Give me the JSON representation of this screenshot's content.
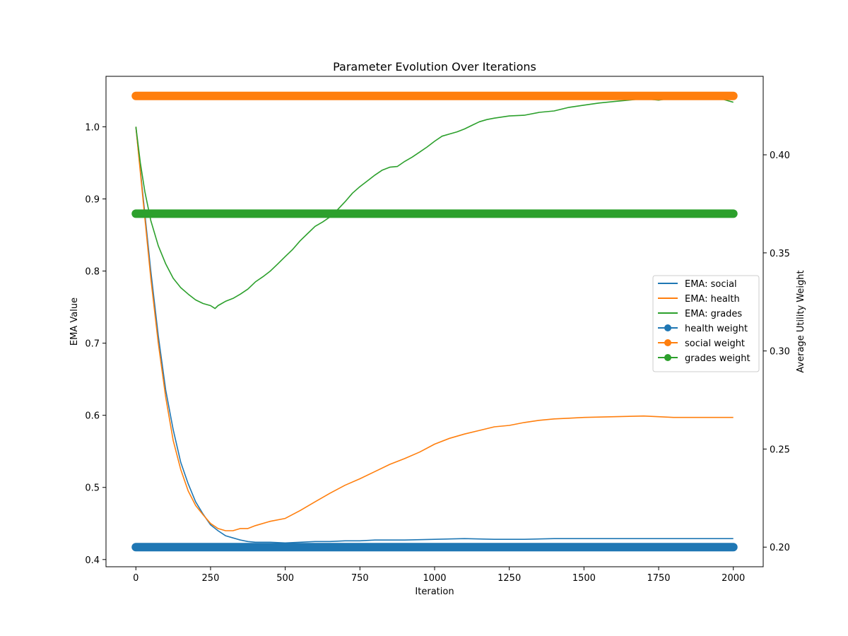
{
  "chart_data": {
    "type": "line",
    "title": "Parameter Evolution Over Iterations",
    "xlabel": "Iteration",
    "ylabel": "EMA Value",
    "y2label": "Average Utility Weight",
    "xlim": [
      -100,
      2100
    ],
    "ylim": [
      0.39,
      1.07
    ],
    "y2lim": [
      0.19,
      0.44
    ],
    "xticks": [
      0,
      250,
      500,
      750,
      1000,
      1250,
      1500,
      1750,
      2000
    ],
    "yticks": [
      0.4,
      0.5,
      0.6,
      0.7,
      0.8,
      0.9,
      1.0
    ],
    "yticklabels": [
      "0.4",
      "0.5",
      "0.6",
      "0.7",
      "0.8",
      "0.9",
      "1.0"
    ],
    "y2ticks": [
      0.2,
      0.25,
      0.3,
      0.35,
      0.4
    ],
    "y2ticklabels": [
      "0.20",
      "0.25",
      "0.30",
      "0.35",
      "0.40"
    ],
    "legend_position": "center-right",
    "grid": false,
    "series": [
      {
        "name": "EMA: social",
        "axis": "left",
        "style": "line",
        "color": "#1f77b4",
        "points": [
          [
            0,
            1.0
          ],
          [
            25,
            0.9
          ],
          [
            50,
            0.8
          ],
          [
            75,
            0.71
          ],
          [
            100,
            0.635
          ],
          [
            125,
            0.58
          ],
          [
            150,
            0.535
          ],
          [
            175,
            0.505
          ],
          [
            200,
            0.48
          ],
          [
            225,
            0.463
          ],
          [
            250,
            0.448
          ],
          [
            275,
            0.44
          ],
          [
            300,
            0.433
          ],
          [
            325,
            0.43
          ],
          [
            350,
            0.427
          ],
          [
            375,
            0.425
          ],
          [
            400,
            0.424
          ],
          [
            450,
            0.424
          ],
          [
            500,
            0.423
          ],
          [
            550,
            0.424
          ],
          [
            600,
            0.425
          ],
          [
            650,
            0.425
          ],
          [
            700,
            0.426
          ],
          [
            750,
            0.426
          ],
          [
            800,
            0.427
          ],
          [
            900,
            0.427
          ],
          [
            1000,
            0.428
          ],
          [
            1100,
            0.429
          ],
          [
            1200,
            0.428
          ],
          [
            1300,
            0.428
          ],
          [
            1400,
            0.429
          ],
          [
            1500,
            0.429
          ],
          [
            1600,
            0.429
          ],
          [
            1700,
            0.429
          ],
          [
            1800,
            0.429
          ],
          [
            1900,
            0.429
          ],
          [
            2000,
            0.429
          ]
        ]
      },
      {
        "name": "EMA: health",
        "axis": "left",
        "style": "line",
        "color": "#ff7f0e",
        "points": [
          [
            0,
            1.0
          ],
          [
            25,
            0.895
          ],
          [
            50,
            0.79
          ],
          [
            75,
            0.7
          ],
          [
            100,
            0.625
          ],
          [
            125,
            0.565
          ],
          [
            150,
            0.525
          ],
          [
            175,
            0.495
          ],
          [
            200,
            0.475
          ],
          [
            225,
            0.462
          ],
          [
            250,
            0.45
          ],
          [
            275,
            0.443
          ],
          [
            300,
            0.44
          ],
          [
            325,
            0.44
          ],
          [
            350,
            0.443
          ],
          [
            375,
            0.443
          ],
          [
            400,
            0.447
          ],
          [
            450,
            0.453
          ],
          [
            500,
            0.457
          ],
          [
            550,
            0.468
          ],
          [
            600,
            0.48
          ],
          [
            650,
            0.492
          ],
          [
            700,
            0.503
          ],
          [
            750,
            0.512
          ],
          [
            800,
            0.522
          ],
          [
            850,
            0.532
          ],
          [
            900,
            0.54
          ],
          [
            950,
            0.549
          ],
          [
            1000,
            0.56
          ],
          [
            1050,
            0.568
          ],
          [
            1100,
            0.574
          ],
          [
            1150,
            0.579
          ],
          [
            1200,
            0.584
          ],
          [
            1250,
            0.586
          ],
          [
            1300,
            0.59
          ],
          [
            1350,
            0.593
          ],
          [
            1400,
            0.595
          ],
          [
            1450,
            0.596
          ],
          [
            1500,
            0.597
          ],
          [
            1600,
            0.598
          ],
          [
            1700,
            0.599
          ],
          [
            1800,
            0.597
          ],
          [
            1900,
            0.597
          ],
          [
            2000,
            0.597
          ]
        ]
      },
      {
        "name": "EMA: grades",
        "axis": "left",
        "style": "line",
        "color": "#2ca02c",
        "points": [
          [
            0,
            1.0
          ],
          [
            15,
            0.95
          ],
          [
            30,
            0.91
          ],
          [
            50,
            0.87
          ],
          [
            75,
            0.835
          ],
          [
            100,
            0.81
          ],
          [
            125,
            0.79
          ],
          [
            150,
            0.777
          ],
          [
            175,
            0.768
          ],
          [
            200,
            0.76
          ],
          [
            225,
            0.755
          ],
          [
            250,
            0.752
          ],
          [
            265,
            0.748
          ],
          [
            275,
            0.752
          ],
          [
            300,
            0.758
          ],
          [
            325,
            0.762
          ],
          [
            350,
            0.768
          ],
          [
            375,
            0.775
          ],
          [
            400,
            0.785
          ],
          [
            425,
            0.792
          ],
          [
            450,
            0.8
          ],
          [
            475,
            0.81
          ],
          [
            500,
            0.82
          ],
          [
            525,
            0.83
          ],
          [
            550,
            0.842
          ],
          [
            575,
            0.852
          ],
          [
            600,
            0.862
          ],
          [
            625,
            0.868
          ],
          [
            650,
            0.875
          ],
          [
            675,
            0.885
          ],
          [
            700,
            0.896
          ],
          [
            725,
            0.908
          ],
          [
            750,
            0.917
          ],
          [
            775,
            0.925
          ],
          [
            800,
            0.933
          ],
          [
            825,
            0.94
          ],
          [
            850,
            0.944
          ],
          [
            875,
            0.945
          ],
          [
            900,
            0.952
          ],
          [
            925,
            0.958
          ],
          [
            950,
            0.965
          ],
          [
            975,
            0.972
          ],
          [
            1000,
            0.98
          ],
          [
            1025,
            0.987
          ],
          [
            1050,
            0.99
          ],
          [
            1075,
            0.993
          ],
          [
            1100,
            0.997
          ],
          [
            1125,
            1.002
          ],
          [
            1150,
            1.007
          ],
          [
            1175,
            1.01
          ],
          [
            1200,
            1.012
          ],
          [
            1250,
            1.015
          ],
          [
            1300,
            1.016
          ],
          [
            1350,
            1.02
          ],
          [
            1400,
            1.022
          ],
          [
            1450,
            1.027
          ],
          [
            1500,
            1.03
          ],
          [
            1550,
            1.033
          ],
          [
            1600,
            1.035
          ],
          [
            1650,
            1.037
          ],
          [
            1700,
            1.039
          ],
          [
            1750,
            1.037
          ],
          [
            1800,
            1.04
          ],
          [
            1850,
            1.042
          ],
          [
            1900,
            1.043
          ],
          [
            1950,
            1.04
          ],
          [
            2000,
            1.034
          ]
        ]
      },
      {
        "name": "health weight",
        "axis": "right",
        "style": "marker-line",
        "color": "#1f77b4",
        "x_range": [
          0,
          2000
        ],
        "value": 0.2
      },
      {
        "name": "social weight",
        "axis": "right",
        "style": "marker-line",
        "color": "#ff7f0e",
        "x_range": [
          0,
          2000
        ],
        "value": 0.43
      },
      {
        "name": "grades weight",
        "axis": "right",
        "style": "marker-line",
        "color": "#2ca02c",
        "x_range": [
          0,
          2000
        ],
        "value": 0.37
      }
    ]
  }
}
